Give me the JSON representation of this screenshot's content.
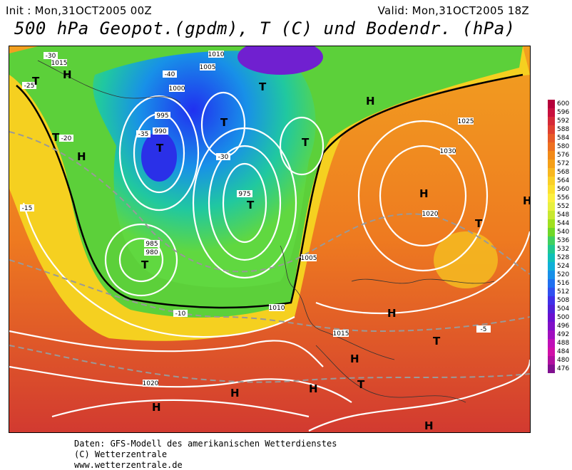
{
  "header": {
    "init": "Init : Mon,31OCT2005 00Z",
    "valid": "Valid: Mon,31OCT2005 18Z",
    "title": "500 hPa Geopot.(gpdm), T (C) und Bodendr. (hPa)"
  },
  "scale": {
    "values": [
      "600",
      "596",
      "592",
      "588",
      "584",
      "580",
      "576",
      "572",
      "568",
      "564",
      "560",
      "556",
      "552",
      "548",
      "544",
      "540",
      "536",
      "532",
      "528",
      "524",
      "520",
      "516",
      "512",
      "508",
      "504",
      "500",
      "496",
      "492",
      "488",
      "484",
      "480",
      "476"
    ],
    "colors": [
      "#b5003a",
      "#c8103e",
      "#d62a38",
      "#e04030",
      "#e85a28",
      "#ee7020",
      "#f28a18",
      "#f5a018",
      "#f8b820",
      "#fad028",
      "#fce030",
      "#fcf040",
      "#e8f040",
      "#c8e830",
      "#a0e020",
      "#70d828",
      "#40d060",
      "#20c890",
      "#10c0b8",
      "#10b0d8",
      "#1890e8",
      "#2070f0",
      "#3050f0",
      "#4030e8",
      "#5020d8",
      "#6a10d0",
      "#8010c8",
      "#a010c0",
      "#c010b8",
      "#d010a8",
      "#b010a0",
      "#801090"
    ]
  },
  "map": {
    "isobar_labels": [
      "1015",
      "1010",
      "1005",
      "1000",
      "995",
      "990",
      "985",
      "980",
      "975",
      "1020",
      "1025",
      "1030",
      "1005",
      "1010",
      "1015",
      "1020"
    ],
    "temperature_labels": [
      "-30",
      "-25",
      "-40",
      "-35",
      "-30",
      "-20",
      "-15",
      "-10",
      "-5"
    ],
    "pressure_centers": [
      {
        "type": "H",
        "label": "H"
      },
      {
        "type": "T",
        "label": "T"
      }
    ]
  },
  "footer": {
    "line1": "Daten: GFS-Modell des amerikanischen Wetterdienstes",
    "line2": "(C) Wetterzentrale",
    "line3": "www.wetterzentrale.de"
  }
}
